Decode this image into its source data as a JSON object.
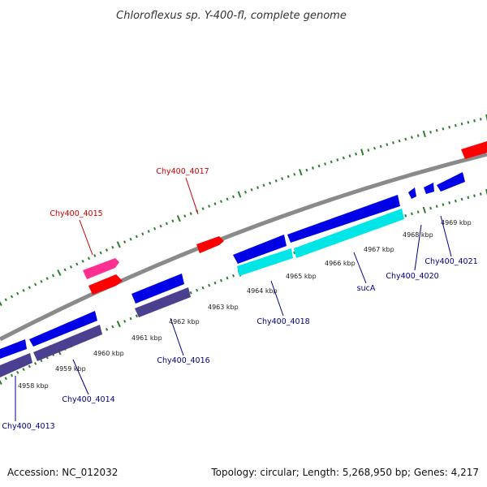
{
  "title": "Chloroflexus sp. Y-400-fl, complete genome",
  "footer": {
    "accession": "Accession: NC_012032",
    "summary": "Topology: circular; Length: 5,268,950 bp; Genes: 4,217"
  },
  "colors": {
    "backbone": "#8a8a8a",
    "tick": "#2e7d2e",
    "forward_cds": "#ff0000",
    "forward_rna": "#ff2f92",
    "reverse_cds": "#0000e6",
    "reverse_other": "#4b3f8f",
    "highlight": "#00e5e5",
    "label_forward": "#cc0000",
    "label_reverse": "#00008b"
  },
  "scale_labels": [
    "4958 kbp",
    "4959 kbp",
    "4960 kbp",
    "4961 kbp",
    "4962 kbp",
    "4963 kbp",
    "4964 kbp",
    "4965 kbp",
    "4966 kbp",
    "4967 kbp",
    "4968 kbp",
    "4969 kbp"
  ],
  "gene_labels": {
    "forward": [
      "Chy400_4015",
      "Chy400_4017"
    ],
    "reverse": [
      "Chy400_4013",
      "Chy400_4014",
      "Chy400_4016",
      "Chy400_4018",
      "sucA",
      "Chy400_4020",
      "Chy400_4021"
    ]
  }
}
